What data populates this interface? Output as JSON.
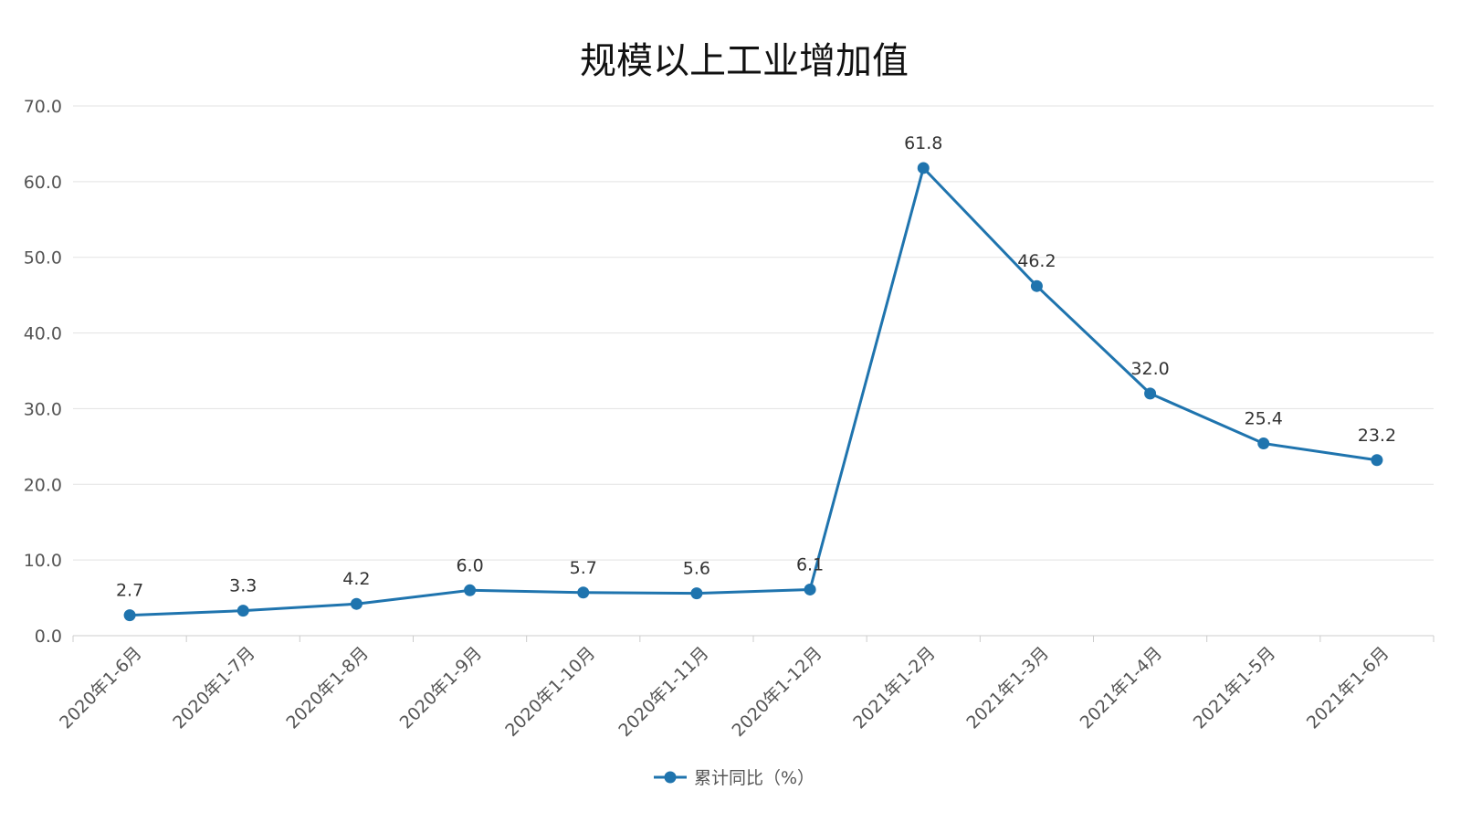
{
  "chart_data": {
    "type": "line",
    "title": "规模以上工业增加值",
    "categories": [
      "2020年1-6月",
      "2020年1-7月",
      "2020年1-8月",
      "2020年1-9月",
      "2020年1-10月",
      "2020年1-11月",
      "2020年1-12月",
      "2021年1-2月",
      "2021年1-3月",
      "2021年1-4月",
      "2021年1-5月",
      "2021年1-6月"
    ],
    "series": [
      {
        "name": "累计同比（%）",
        "values": [
          2.7,
          3.3,
          4.2,
          6.0,
          5.7,
          5.6,
          6.1,
          61.8,
          46.2,
          32.0,
          25.4,
          23.2
        ],
        "color": "#1f74ae"
      }
    ],
    "y_ticks": [
      "0.0",
      "10.0",
      "20.0",
      "30.0",
      "40.0",
      "50.0",
      "60.0",
      "70.0"
    ],
    "data_labels": [
      "2.7",
      "3.3",
      "4.2",
      "6.0",
      "5.7",
      "5.6",
      "6.1",
      "61.8",
      "46.2",
      "32.0",
      "25.4",
      "23.2"
    ],
    "ylim": [
      0,
      70
    ],
    "grid": true,
    "legend_position": "bottom-center",
    "xlabel": "",
    "ylabel": "",
    "colors": {
      "series": "#1f74ae",
      "grid": "#e3e3e3",
      "axis": "#cccccc",
      "text": "#333333",
      "tick_text": "#555555"
    }
  }
}
